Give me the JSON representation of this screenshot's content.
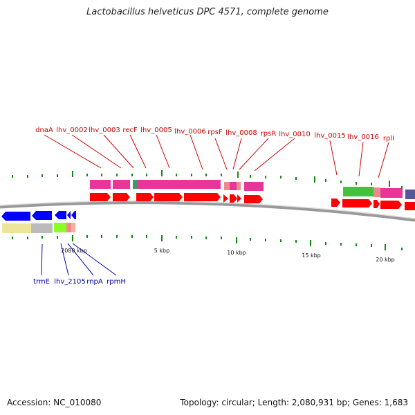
{
  "title": "Lactobacillus helveticus DPC 4571, complete genome",
  "accession": "Accession: NC_010080",
  "topology": "Topology: circular; Length: 2,080,931 bp; Genes: 1,683",
  "top_genes": [
    "dnaA",
    "lhv_0002",
    "lhv_0003",
    "recF",
    "lhv_0005",
    "lhv_0006",
    "rpsF",
    "lhv_0008",
    "rpsR",
    "lhv_0010",
    "lhv_0015",
    "lhv_0016",
    "rplI"
  ],
  "bottom_genes": [
    "trmE",
    "lhv_2105",
    "rnpA",
    "rpmH"
  ],
  "scale_labels": [
    "2080 kbp",
    "5 kbp",
    "10 kbp",
    "15 kbp",
    "20 kbp"
  ],
  "colors": {
    "forward_gene": "#ff0000",
    "reverse_gene": "#0000ff",
    "top_label": "#cc0000",
    "bottom_label": "#0000aa",
    "tick": "#118811",
    "backbone": "#888888"
  }
}
